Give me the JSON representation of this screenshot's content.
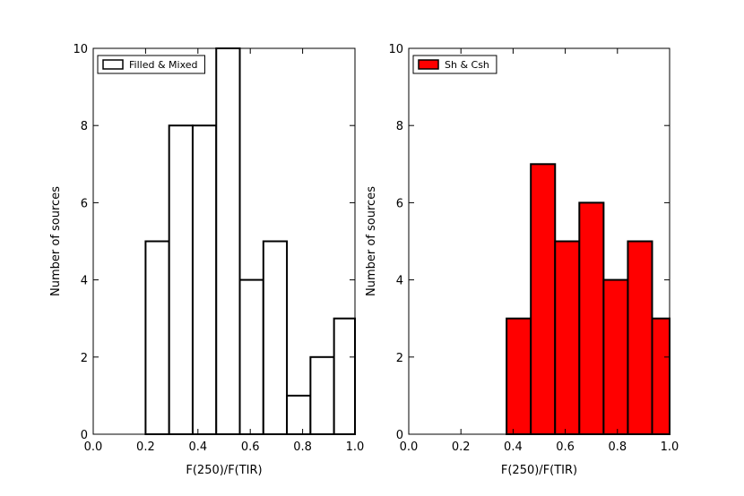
{
  "chart_data": [
    {
      "type": "bar",
      "xlabel": "F(250)/F(TIR)",
      "ylabel": "Number of sources",
      "xlim": [
        0.0,
        1.0
      ],
      "ylim": [
        0,
        10
      ],
      "xticks": [
        "0.0",
        "0.2",
        "0.4",
        "0.6",
        "0.8",
        "1.0"
      ],
      "yticks": [
        "0",
        "2",
        "4",
        "6",
        "8",
        "10"
      ],
      "legend": {
        "label": "Filled & Mixed",
        "position": "top-left"
      },
      "series": [
        {
          "name": "Filled & Mixed",
          "color": "#ffffff",
          "bins": [
            {
              "x0": 0.2,
              "x1": 0.29,
              "value": 5
            },
            {
              "x0": 0.29,
              "x1": 0.38,
              "value": 8
            },
            {
              "x0": 0.38,
              "x1": 0.47,
              "value": 8
            },
            {
              "x0": 0.47,
              "x1": 0.56,
              "value": 10
            },
            {
              "x0": 0.56,
              "x1": 0.65,
              "value": 4
            },
            {
              "x0": 0.65,
              "x1": 0.74,
              "value": 5
            },
            {
              "x0": 0.74,
              "x1": 0.83,
              "value": 1
            },
            {
              "x0": 0.83,
              "x1": 0.92,
              "value": 2
            },
            {
              "x0": 0.92,
              "x1": 1.0,
              "value": 3
            }
          ]
        }
      ]
    },
    {
      "type": "bar",
      "xlabel": "F(250)/F(TIR)",
      "ylabel": "Number of sources",
      "xlim": [
        0.0,
        1.0
      ],
      "ylim": [
        0,
        10
      ],
      "xticks": [
        "0.0",
        "0.2",
        "0.4",
        "0.6",
        "0.8",
        "1.0"
      ],
      "yticks": [
        "0",
        "2",
        "4",
        "6",
        "8",
        "10"
      ],
      "legend": {
        "label": "Sh & Csh",
        "position": "top-left"
      },
      "series": [
        {
          "name": "Sh & Csh",
          "color": "#ff0000",
          "bins": [
            {
              "x0": 0.375,
              "x1": 0.468,
              "value": 3
            },
            {
              "x0": 0.468,
              "x1": 0.561,
              "value": 7
            },
            {
              "x0": 0.561,
              "x1": 0.654,
              "value": 5
            },
            {
              "x0": 0.654,
              "x1": 0.747,
              "value": 6
            },
            {
              "x0": 0.747,
              "x1": 0.84,
              "value": 4
            },
            {
              "x0": 0.84,
              "x1": 0.933,
              "value": 5
            },
            {
              "x0": 0.933,
              "x1": 1.0,
              "value": 3
            }
          ]
        }
      ]
    }
  ]
}
